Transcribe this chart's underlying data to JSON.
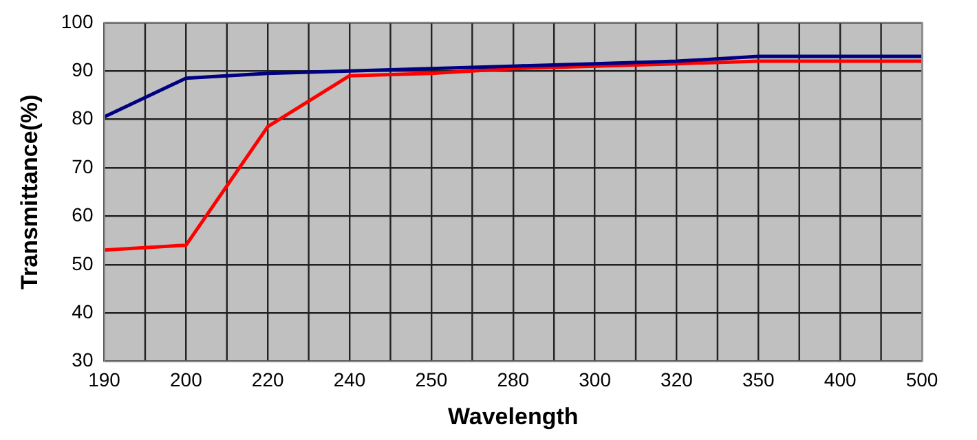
{
  "chart_data": {
    "type": "line",
    "xlabel": "Wavelength",
    "ylabel": "Transmittance(%)",
    "categories": [
      "190",
      "200",
      "220",
      "240",
      "250",
      "280",
      "300",
      "320",
      "350",
      "400",
      "500"
    ],
    "series": [
      {
        "color": "#000080",
        "values": [
          80.5,
          88.5,
          89.5,
          90,
          90.5,
          91,
          91.5,
          92,
          93,
          93,
          93
        ]
      },
      {
        "color": "#ff0000",
        "values": [
          53,
          54,
          78.5,
          89,
          89.5,
          90.5,
          91,
          91.5,
          92,
          92,
          92
        ]
      }
    ],
    "ylim": [
      30,
      100
    ],
    "yticks": [
      30,
      40,
      50,
      60,
      70,
      80,
      90,
      100
    ],
    "grid": true,
    "legend": false,
    "marker": "none",
    "line_style": "solid"
  }
}
